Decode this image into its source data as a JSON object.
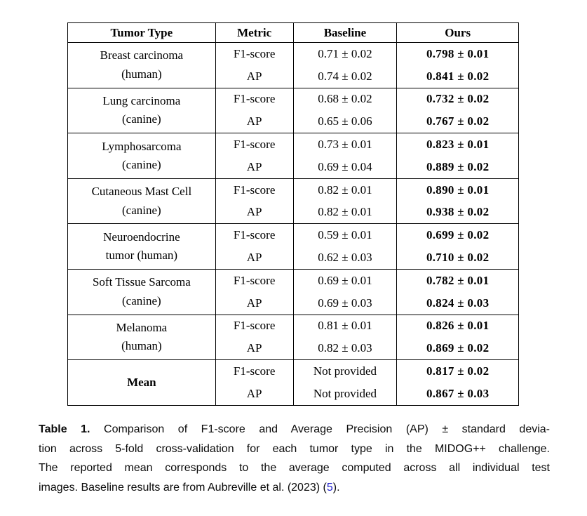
{
  "colors": {
    "citation_blue": "#2222cc",
    "text": "#000000",
    "background": "#ffffff"
  },
  "table": {
    "headers": [
      "Tumor Type",
      "Metric",
      "Baseline",
      "Ours"
    ],
    "groups": [
      {
        "tumor_line1": "Breast carcinoma",
        "tumor_line2": "(human)",
        "bold": false,
        "rows": [
          {
            "metric": "F1-score",
            "baseline": "0.71 ± 0.02",
            "ours": "0.798 ± 0.01"
          },
          {
            "metric": "AP",
            "baseline": "0.74 ± 0.02",
            "ours": "0.841 ± 0.02"
          }
        ]
      },
      {
        "tumor_line1": "Lung carcinoma",
        "tumor_line2": "(canine)",
        "bold": false,
        "rows": [
          {
            "metric": "F1-score",
            "baseline": "0.68 ± 0.02",
            "ours": "0.732 ± 0.02"
          },
          {
            "metric": "AP",
            "baseline": "0.65 ± 0.06",
            "ours": "0.767 ± 0.02"
          }
        ]
      },
      {
        "tumor_line1": "Lymphosarcoma",
        "tumor_line2": "(canine)",
        "bold": false,
        "rows": [
          {
            "metric": "F1-score",
            "baseline": "0.73 ± 0.01",
            "ours": "0.823 ± 0.01"
          },
          {
            "metric": "AP",
            "baseline": "0.69 ± 0.04",
            "ours": "0.889 ± 0.02"
          }
        ]
      },
      {
        "tumor_line1": "Cutaneous Mast Cell",
        "tumor_line2": "(canine)",
        "bold": false,
        "rows": [
          {
            "metric": "F1-score",
            "baseline": "0.82 ± 0.01",
            "ours": "0.890 ± 0.01"
          },
          {
            "metric": "AP",
            "baseline": "0.82 ± 0.01",
            "ours": "0.938 ± 0.02"
          }
        ]
      },
      {
        "tumor_line1": "Neuroendocrine",
        "tumor_line2": "tumor (human)",
        "bold": false,
        "rows": [
          {
            "metric": "F1-score",
            "baseline": "0.59 ± 0.01",
            "ours": "0.699 ± 0.02"
          },
          {
            "metric": "AP",
            "baseline": "0.62 ± 0.03",
            "ours": "0.710 ± 0.02"
          }
        ]
      },
      {
        "tumor_line1": "Soft Tissue Sarcoma",
        "tumor_line2": "(canine)",
        "bold": false,
        "rows": [
          {
            "metric": "F1-score",
            "baseline": "0.69 ± 0.01",
            "ours": "0.782 ± 0.01"
          },
          {
            "metric": "AP",
            "baseline": "0.69 ± 0.03",
            "ours": "0.824 ± 0.03"
          }
        ]
      },
      {
        "tumor_line1": "Melanoma",
        "tumor_line2": "(human)",
        "bold": false,
        "rows": [
          {
            "metric": "F1-score",
            "baseline": "0.81 ± 0.01",
            "ours": "0.826 ± 0.01"
          },
          {
            "metric": "AP",
            "baseline": "0.82 ± 0.03",
            "ours": "0.869 ± 0.02"
          }
        ]
      },
      {
        "tumor_line1": "Mean",
        "tumor_line2": "",
        "bold": true,
        "rows": [
          {
            "metric": "F1-score",
            "baseline": "Not provided",
            "ours": "0.817 ± 0.02"
          },
          {
            "metric": "AP",
            "baseline": "Not provided",
            "ours": "0.867 ± 0.03"
          }
        ]
      }
    ]
  },
  "caption": {
    "label": "Table 1.",
    "line1_text": "Comparison of F1-score and Average Precision (AP) ± standard devia-",
    "line2": "tion across 5-fold cross-validation for each tumor type in the MIDOG++ challenge.",
    "line3": "The reported mean corresponds to the average computed across all individual test",
    "line4_pre": "images. Baseline results are from Aubreville et al. (2023) (",
    "line4_cite": "5",
    "line4_post": ")."
  }
}
